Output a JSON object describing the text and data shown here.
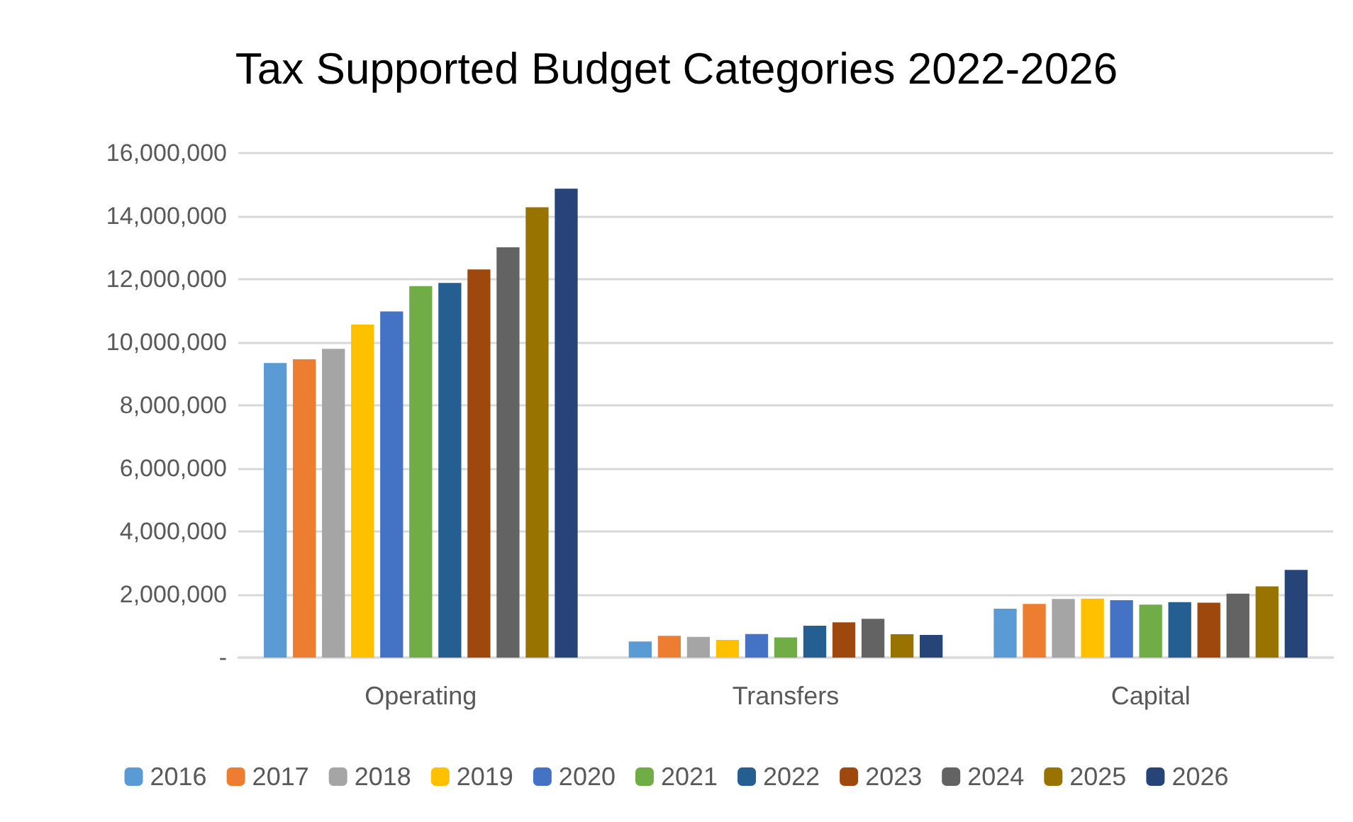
{
  "chart_data": {
    "type": "bar",
    "title": "Tax Supported Budget Categories 2022-2026",
    "categories": [
      "Operating",
      "Transfers",
      "Capital"
    ],
    "series": [
      {
        "name": "2016",
        "color": "#5b9bd5",
        "values": [
          9340000,
          510000,
          1550000
        ]
      },
      {
        "name": "2017",
        "color": "#ed7d31",
        "values": [
          9460000,
          690000,
          1700000
        ]
      },
      {
        "name": "2018",
        "color": "#a5a5a5",
        "values": [
          9790000,
          660000,
          1860000
        ]
      },
      {
        "name": "2019",
        "color": "#ffc000",
        "values": [
          10560000,
          560000,
          1870000
        ]
      },
      {
        "name": "2020",
        "color": "#4472c4",
        "values": [
          10980000,
          750000,
          1820000
        ]
      },
      {
        "name": "2021",
        "color": "#70ad47",
        "values": [
          11780000,
          640000,
          1680000
        ]
      },
      {
        "name": "2022",
        "color": "#255e91",
        "values": [
          11880000,
          1010000,
          1760000
        ]
      },
      {
        "name": "2023",
        "color": "#9e480e",
        "values": [
          12310000,
          1120000,
          1740000
        ]
      },
      {
        "name": "2024",
        "color": "#636363",
        "values": [
          13010000,
          1230000,
          2030000
        ]
      },
      {
        "name": "2025",
        "color": "#997300",
        "values": [
          14280000,
          740000,
          2260000
        ]
      },
      {
        "name": "2026",
        "color": "#264478",
        "values": [
          14870000,
          720000,
          2780000
        ]
      }
    ],
    "ylim": [
      0,
      16000000
    ],
    "yticks": [
      {
        "value": 0,
        "label": "-"
      },
      {
        "value": 2000000,
        "label": "2,000,000"
      },
      {
        "value": 4000000,
        "label": "4,000,000"
      },
      {
        "value": 6000000,
        "label": "6,000,000"
      },
      {
        "value": 8000000,
        "label": "8,000,000"
      },
      {
        "value": 10000000,
        "label": "10,000,000"
      },
      {
        "value": 12000000,
        "label": "12,000,000"
      },
      {
        "value": 14000000,
        "label": "14,000,000"
      },
      {
        "value": 16000000,
        "label": "16,000,000"
      }
    ],
    "grid": "y",
    "legend": "bottom"
  }
}
